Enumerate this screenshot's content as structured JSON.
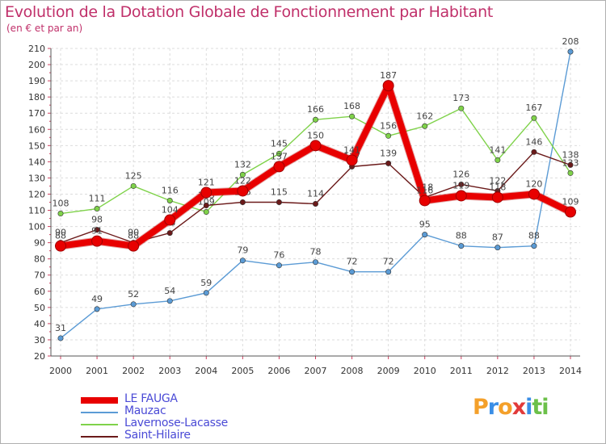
{
  "title": "Evolution de la Dotation Globale de Fonctionnement par Habitant",
  "subtitle": "(en € et par an)",
  "logo": {
    "letters": [
      "P",
      "r",
      "o",
      "x",
      "i",
      "t",
      "i"
    ],
    "colors": [
      "#f4a02a",
      "#3a8ee6",
      "#f4a02a",
      "#e23a3a",
      "#3a8ee6",
      "#6cc04a",
      "#6cc04a"
    ]
  },
  "chart_data": {
    "type": "line",
    "title": "Evolution de la Dotation Globale de Fonctionnement par Habitant",
    "x": [
      "2000",
      "2001",
      "2002",
      "2003",
      "2004",
      "2005",
      "2006",
      "2007",
      "2008",
      "2009",
      "2010",
      "2011",
      "2012",
      "2013",
      "2014"
    ],
    "ylim": [
      20,
      210
    ],
    "yticks": [
      20,
      30,
      40,
      50,
      60,
      70,
      80,
      90,
      100,
      110,
      120,
      130,
      140,
      150,
      160,
      170,
      180,
      190,
      200,
      210
    ],
    "grid": true,
    "legend_position": "bottom-left",
    "series": [
      {
        "name": "LE FAUGA",
        "color": "#e80000",
        "values": [
          88,
          91,
          88,
          104,
          121,
          122,
          137,
          150,
          141,
          187,
          116,
          119,
          118,
          120,
          109
        ]
      },
      {
        "name": "Mauzac",
        "color": "#5b9bd5",
        "values": [
          31,
          49,
          52,
          54,
          59,
          79,
          76,
          78,
          72,
          72,
          95,
          88,
          87,
          88,
          208
        ]
      },
      {
        "name": "Lavernose-Lacasse",
        "color": "#7fd24a",
        "values": [
          108,
          111,
          125,
          116,
          109,
          132,
          145,
          166,
          168,
          156,
          162,
          173,
          141,
          167,
          133
        ]
      },
      {
        "name": "Saint-Hilaire",
        "color": "#6b1a1a",
        "values": [
          90,
          98,
          90,
          96,
          113,
          115,
          115,
          114,
          137,
          139,
          118,
          126,
          122,
          146,
          138
        ]
      }
    ]
  }
}
